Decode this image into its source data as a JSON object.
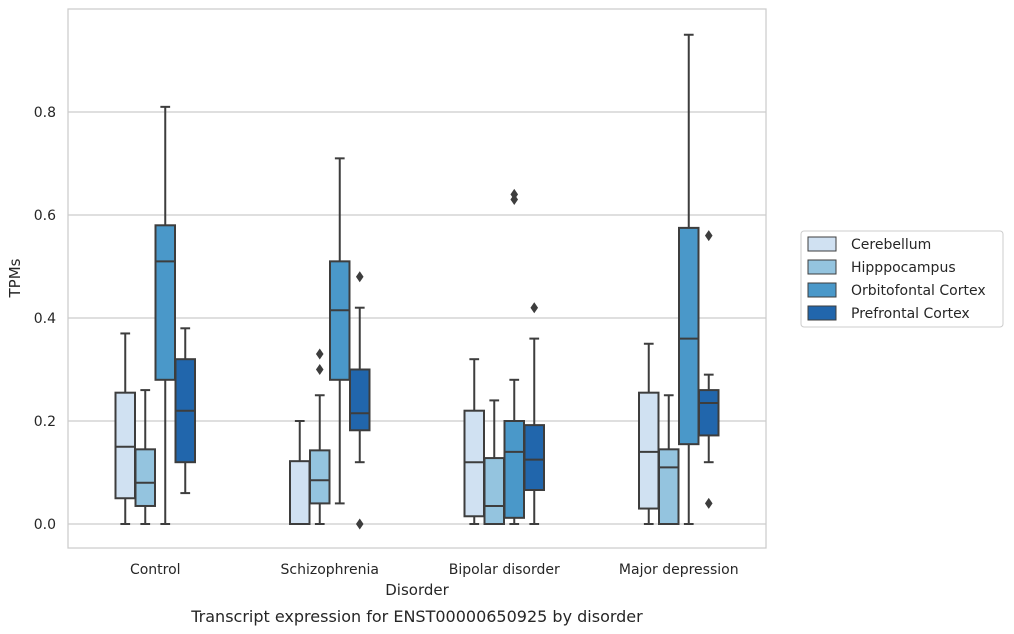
{
  "chart_data": {
    "type": "box",
    "xlabel": "Disorder",
    "ylabel": "TPMs",
    "caption": "Transcript expression for ENST00000650925 by disorder",
    "ylim": [
      -0.045,
      0.99
    ],
    "yticks": [
      0.0,
      0.2,
      0.4,
      0.6,
      0.8
    ],
    "ytick_labels": [
      "0.0",
      "0.2",
      "0.4",
      "0.6",
      "0.8"
    ],
    "grid": true,
    "legend_position": "right-outside",
    "categories": [
      "Control",
      "Schizophrenia",
      "Bipolar disorder",
      "Major depression"
    ],
    "series": [
      {
        "name": "Cerebellum",
        "color": "#d0e1f2",
        "boxes": [
          {
            "whislo": 0.0,
            "q1": 0.05,
            "med": 0.15,
            "q3": 0.255,
            "whishi": 0.37,
            "fliers": []
          },
          {
            "whislo": 0.0,
            "q1": 0.0,
            "med": 0.0,
            "q3": 0.122,
            "whishi": 0.2,
            "fliers": []
          },
          {
            "whislo": 0.0,
            "q1": 0.015,
            "med": 0.12,
            "q3": 0.22,
            "whishi": 0.32,
            "fliers": []
          },
          {
            "whislo": 0.0,
            "q1": 0.03,
            "med": 0.14,
            "q3": 0.255,
            "whishi": 0.35,
            "fliers": []
          }
        ]
      },
      {
        "name": "Hipppocampus",
        "color": "#94c4df",
        "boxes": [
          {
            "whislo": 0.0,
            "q1": 0.035,
            "med": 0.08,
            "q3": 0.145,
            "whishi": 0.26,
            "fliers": []
          },
          {
            "whislo": 0.0,
            "q1": 0.04,
            "med": 0.085,
            "q3": 0.143,
            "whishi": 0.25,
            "fliers": [
              0.3,
              0.33
            ]
          },
          {
            "whislo": 0.0,
            "q1": 0.0,
            "med": 0.035,
            "q3": 0.128,
            "whishi": 0.24,
            "fliers": []
          },
          {
            "whislo": 0.0,
            "q1": 0.0,
            "med": 0.11,
            "q3": 0.145,
            "whishi": 0.25,
            "fliers": []
          }
        ]
      },
      {
        "name": "Orbitofontal Cortex",
        "color": "#4a98c9",
        "boxes": [
          {
            "whislo": 0.0,
            "q1": 0.28,
            "med": 0.51,
            "q3": 0.58,
            "whishi": 0.81,
            "fliers": []
          },
          {
            "whislo": 0.04,
            "q1": 0.28,
            "med": 0.415,
            "q3": 0.51,
            "whishi": 0.71,
            "fliers": []
          },
          {
            "whislo": 0.0,
            "q1": 0.012,
            "med": 0.14,
            "q3": 0.2,
            "whishi": 0.28,
            "fliers": [
              0.63,
              0.64
            ]
          },
          {
            "whislo": 0.0,
            "q1": 0.155,
            "med": 0.36,
            "q3": 0.575,
            "whishi": 0.95,
            "fliers": []
          }
        ]
      },
      {
        "name": "Prefrontal Cortex",
        "color": "#2166ac",
        "boxes": [
          {
            "whislo": 0.06,
            "q1": 0.12,
            "med": 0.22,
            "q3": 0.32,
            "whishi": 0.38,
            "fliers": []
          },
          {
            "whislo": 0.12,
            "q1": 0.182,
            "med": 0.215,
            "q3": 0.3,
            "whishi": 0.42,
            "fliers": [
              0.0,
              0.48
            ]
          },
          {
            "whislo": 0.0,
            "q1": 0.066,
            "med": 0.125,
            "q3": 0.192,
            "whishi": 0.36,
            "fliers": [
              0.42
            ]
          },
          {
            "whislo": 0.12,
            "q1": 0.172,
            "med": 0.235,
            "q3": 0.26,
            "whishi": 0.29,
            "fliers": [
              0.04,
              0.56
            ]
          }
        ]
      }
    ]
  }
}
